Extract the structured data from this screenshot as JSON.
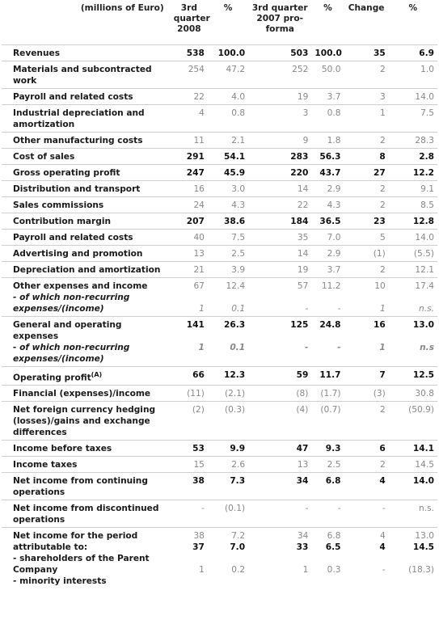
{
  "header": {
    "label": "(millions of Euro)",
    "col_q3_2008": "3rd quarter 2008",
    "col_pct1": "%",
    "col_q3_2007": "3rd quarter 2007 pro-forma",
    "col_pct2": "%",
    "col_change": "Change",
    "col_pct3": "%"
  },
  "rows": [
    {
      "label": "Revenues",
      "bold": true,
      "v": [
        "538",
        "100.0",
        "503",
        "100.0",
        "35",
        "6.9"
      ]
    },
    {
      "label": "Materials and subcontracted work",
      "bold": false,
      "v": [
        "254",
        "47.2",
        "252",
        "50.0",
        "2",
        "1.0"
      ]
    },
    {
      "label": "Payroll and related costs",
      "bold": false,
      "v": [
        "22",
        "4.0",
        "19",
        "3.7",
        "3",
        "14.0"
      ]
    },
    {
      "label": "Industrial depreciation and amortization",
      "bold": false,
      "v": [
        "4",
        "0.8",
        "3",
        "0.8",
        "1",
        "7.5"
      ]
    },
    {
      "label": "Other manufacturing costs",
      "bold": false,
      "v": [
        "11",
        "2.1",
        "9",
        "1.8",
        "2",
        "28.3"
      ]
    },
    {
      "label": "Cost of sales",
      "bold": true,
      "v": [
        "291",
        "54.1",
        "283",
        "56.3",
        "8",
        "2.8"
      ]
    },
    {
      "label": "Gross operating profit",
      "bold": true,
      "v": [
        "247",
        "45.9",
        "220",
        "43.7",
        "27",
        "12.2"
      ]
    },
    {
      "label": "Distribution and transport",
      "bold": false,
      "v": [
        "16",
        "3.0",
        "14",
        "2.9",
        "2",
        "9.1"
      ]
    },
    {
      "label": "Sales commissions",
      "bold": false,
      "v": [
        "24",
        "4.3",
        "22",
        "4.3",
        "2",
        "8.5"
      ]
    },
    {
      "label": "Contribution margin",
      "bold": true,
      "v": [
        "207",
        "38.6",
        "184",
        "36.5",
        "23",
        "12.8"
      ]
    },
    {
      "label": "Payroll and related costs",
      "bold": false,
      "v": [
        "40",
        "7.5",
        "35",
        "7.0",
        "5",
        "14.0"
      ]
    },
    {
      "label": "Advertising and promotion",
      "bold": false,
      "v": [
        "13",
        "2.5",
        "14",
        "2.9",
        "(1)",
        "(5.5)"
      ]
    },
    {
      "label": "Depreciation and amortization",
      "bold": false,
      "v": [
        "21",
        "3.9",
        "19",
        "3.7",
        "2",
        "12.1"
      ]
    },
    {
      "label": "Other expenses and income",
      "bold": false,
      "v": [
        "67",
        "12.4",
        "57",
        "11.2",
        "10",
        "17.4"
      ],
      "sub_label": "- of which non-recurring expenses/(income)",
      "sub_v": [
        "1",
        "0.1",
        "-",
        "-",
        "1",
        "n.s."
      ]
    },
    {
      "label": "General and operating expenses",
      "bold": true,
      "v": [
        "141",
        "26.3",
        "125",
        "24.8",
        "16",
        "13.0"
      ],
      "sub_label": "- of which non-recurring expenses/(income)",
      "sub_v": [
        "1",
        "0.1",
        "-",
        "-",
        "1",
        "n.s"
      ]
    },
    {
      "label": "Operating profit",
      "sup": "(A)",
      "bold": true,
      "v": [
        "66",
        "12.3",
        "59",
        "11.7",
        "7",
        "12.5"
      ]
    },
    {
      "label": "Financial (expenses)/income",
      "bold": false,
      "v": [
        "(11)",
        "(2.1)",
        "(8)",
        "(1.7)",
        "(3)",
        "30.8"
      ]
    },
    {
      "label": "Net foreign currency hedging (losses)/gains and exchange differences",
      "bold": false,
      "v": [
        "(2)",
        "(0.3)",
        "(4)",
        "(0.7)",
        "2",
        "(50.9)"
      ]
    },
    {
      "label": "Income before taxes",
      "bold": true,
      "v": [
        "53",
        "9.9",
        "47",
        "9.3",
        "6",
        "14.1"
      ]
    },
    {
      "label": "Income taxes",
      "bold": false,
      "v": [
        "15",
        "2.6",
        "13",
        "2.5",
        "2",
        "14.5"
      ]
    },
    {
      "label": "Net income from continuing operations",
      "bold": true,
      "v": [
        "38",
        "7.3",
        "34",
        "6.8",
        "4",
        "14.0"
      ]
    },
    {
      "label": "Net income from discontinued operations",
      "bold": false,
      "v": [
        "-",
        "(0.1)",
        "-",
        "-",
        "-",
        "n.s."
      ]
    },
    {
      "label": "Net income for the period attributable to:",
      "bold": false,
      "v": [
        "38",
        "7.2",
        "34",
        "6.8",
        "4",
        "13.0"
      ]
    }
  ],
  "attrib": {
    "parent_label": "- shareholders of the Parent Company",
    "parent_v": [
      "37",
      "7.0",
      "33",
      "6.5",
      "4",
      "14.5"
    ],
    "minority_label": "- minority interests",
    "minority_v": [
      "1",
      "0.2",
      "1",
      "0.3",
      "-",
      "(18.3)"
    ]
  }
}
